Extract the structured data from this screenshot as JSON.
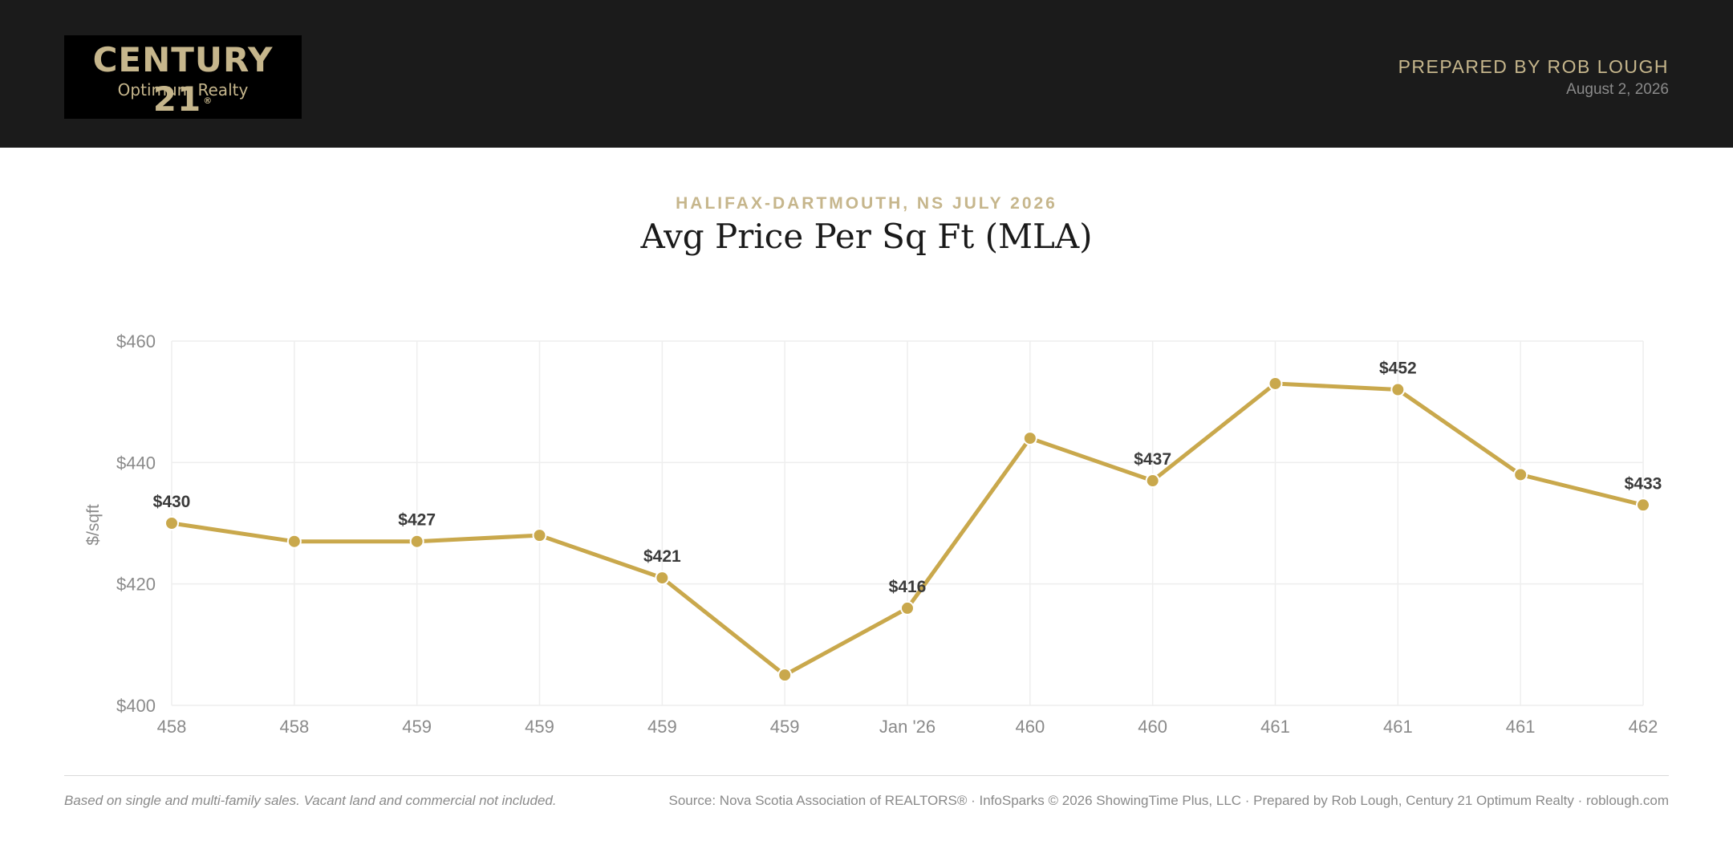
{
  "header": {
    "logo": {
      "brand": "CENTURY 21",
      "sub": "Optimum Realty"
    },
    "prepared_by": "PREPARED BY ROB LOUGH",
    "date": "August 2, 2026"
  },
  "colors": {
    "header_bg": "#1b1b1b",
    "accent": "#c6b68c",
    "line": "#c9a84c",
    "grid": "#eeeeee",
    "axis_text": "#8a8a8a"
  },
  "chart_data": {
    "type": "line",
    "subtitle": "HALIFAX-DARTMOUTH, NS JULY 2026",
    "title": "Avg Price Per Sq Ft (MLA)",
    "ylabel": "$/sqft",
    "xlabel": "",
    "ylim": [
      400,
      460
    ],
    "yticks": [
      "$400",
      "$420",
      "$440",
      "$460"
    ],
    "categories": [
      "458",
      "458",
      "459",
      "459",
      "459",
      "459",
      "Jan '26",
      "460",
      "460",
      "461",
      "461",
      "461",
      "462"
    ],
    "series": [
      {
        "values": [
          430,
          427,
          427,
          428,
          421,
          405,
          416,
          444,
          437,
          453,
          452,
          438,
          433
        ]
      }
    ],
    "data_labels": [
      "$430",
      "",
      "$427",
      "",
      "$421",
      "",
      "$416",
      "",
      "$437",
      "",
      "$452",
      "",
      "$433"
    ],
    "grid": true,
    "legend": "none"
  },
  "footer": {
    "note": "Based on single and multi-family sales. Vacant land and commercial not included.",
    "source": "Source: Nova Scotia Association of REALTORS® · InfoSparks © 2026 ShowingTime Plus, LLC · Prepared by Rob Lough, Century 21 Optimum Realty · roblough.com"
  }
}
